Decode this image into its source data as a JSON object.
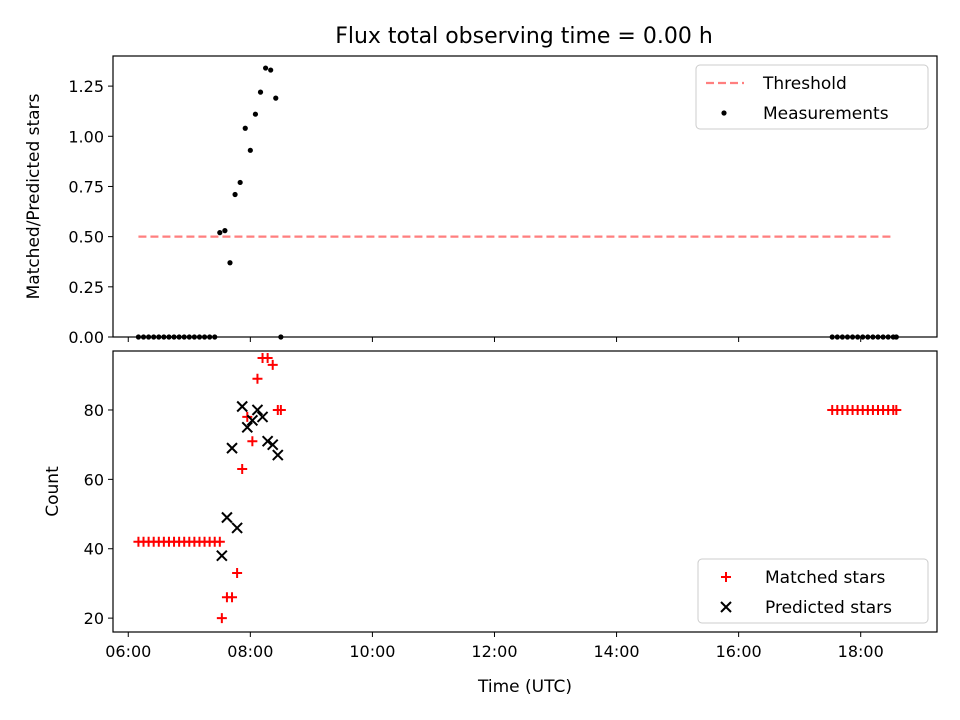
{
  "chart_data": [
    {
      "type": "scatter",
      "title": "Flux total observing time = 0.00 h",
      "xlabel": "",
      "ylabel": "Matched/Predicted stars",
      "xlim": [
        "05:45",
        "19:15"
      ],
      "ylim": [
        0,
        1.4
      ],
      "yticks": [
        "0.00",
        "0.25",
        "0.50",
        "0.75",
        "1.00",
        "1.25"
      ],
      "legend_position": "top-right",
      "series": [
        {
          "name": "Threshold",
          "kind": "dashed-line",
          "color": "#ff7f7f",
          "x": [
            "06:10",
            "18:33"
          ],
          "y": [
            0.5,
            0.5
          ]
        },
        {
          "name": "Measurements",
          "kind": "dot",
          "color": "#000000",
          "x": [
            "06:10",
            "06:15",
            "06:20",
            "06:25",
            "06:30",
            "06:35",
            "06:40",
            "06:45",
            "06:50",
            "06:55",
            "07:00",
            "07:05",
            "07:10",
            "07:15",
            "07:20",
            "07:25",
            "07:30",
            "07:35",
            "07:40",
            "07:45",
            "07:50",
            "07:55",
            "08:00",
            "08:05",
            "08:10",
            "08:15",
            "08:20",
            "08:25",
            "08:30",
            "17:32",
            "17:37",
            "17:42",
            "17:47",
            "17:52",
            "17:57",
            "18:02",
            "18:07",
            "18:12",
            "18:17",
            "18:22",
            "18:27",
            "18:32",
            "18:35"
          ],
          "y": [
            0,
            0,
            0,
            0,
            0,
            0,
            0,
            0,
            0,
            0,
            0,
            0,
            0,
            0,
            0,
            0,
            0.52,
            0.53,
            0.37,
            0.71,
            0.77,
            1.04,
            0.93,
            1.11,
            1.22,
            1.34,
            1.33,
            1.19,
            0,
            0,
            0,
            0,
            0,
            0,
            0,
            0,
            0,
            0,
            0,
            0,
            0,
            0,
            0
          ]
        }
      ]
    },
    {
      "type": "scatter",
      "title": "",
      "xlabel": "Time (UTC)",
      "ylabel": "Count",
      "xlim": [
        "05:45",
        "19:15"
      ],
      "ylim": [
        16,
        97
      ],
      "xticks": [
        "06:00",
        "08:00",
        "10:00",
        "12:00",
        "14:00",
        "16:00",
        "18:00"
      ],
      "yticks": [
        "20",
        "40",
        "60",
        "80"
      ],
      "legend_position": "bottom-right",
      "series": [
        {
          "name": "Matched stars",
          "kind": "plus",
          "color": "#ff0000",
          "x": [
            "06:10",
            "06:15",
            "06:20",
            "06:25",
            "06:30",
            "06:35",
            "06:40",
            "06:45",
            "06:50",
            "06:55",
            "07:00",
            "07:05",
            "07:10",
            "07:15",
            "07:20",
            "07:25",
            "07:30",
            "07:32",
            "07:37",
            "07:42",
            "07:47",
            "07:52",
            "07:57",
            "08:02",
            "08:07",
            "08:12",
            "08:17",
            "08:22",
            "08:27",
            "08:30",
            "17:32",
            "17:37",
            "17:42",
            "17:47",
            "17:52",
            "17:57",
            "18:02",
            "18:07",
            "18:12",
            "18:17",
            "18:22",
            "18:27",
            "18:32",
            "18:35"
          ],
          "y": [
            42,
            42,
            42,
            42,
            42,
            42,
            42,
            42,
            42,
            42,
            42,
            42,
            42,
            42,
            42,
            42,
            42,
            20,
            26,
            26,
            33,
            63,
            78,
            71,
            89,
            95,
            95,
            93,
            80,
            80,
            80,
            80,
            80,
            80,
            80,
            80,
            80,
            80,
            80,
            80,
            80,
            80,
            80,
            80
          ]
        },
        {
          "name": "Predicted stars",
          "kind": "x",
          "color": "#000000",
          "x": [
            "07:32",
            "07:37",
            "07:42",
            "07:47",
            "07:52",
            "07:57",
            "08:02",
            "08:07",
            "08:12",
            "08:17",
            "08:22",
            "08:27"
          ],
          "y": [
            38,
            49,
            69,
            46,
            81,
            75,
            77,
            80,
            78,
            71,
            70,
            67
          ]
        }
      ]
    }
  ]
}
